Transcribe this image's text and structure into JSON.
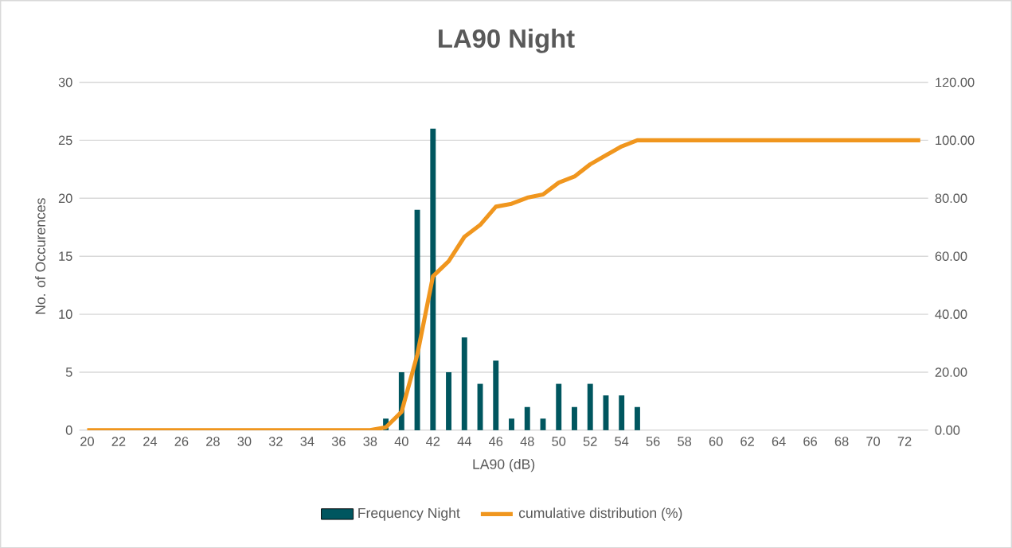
{
  "chart_data": {
    "type": "bar",
    "title": "LA90 Night",
    "xlabel": "LA90 (dB)",
    "ylabel": "No. of Occurences",
    "categories": [
      "20",
      null,
      "22",
      null,
      "24",
      null,
      "26",
      null,
      "28",
      null,
      "30",
      null,
      "32",
      null,
      "34",
      null,
      "36",
      null,
      "38",
      null,
      "40",
      null,
      "42",
      null,
      "44",
      null,
      "46",
      null,
      "48",
      null,
      "50",
      null,
      "52",
      null,
      "54",
      null,
      "56",
      null,
      "58",
      null,
      "60",
      null,
      "62",
      null,
      "64",
      null,
      "66",
      null,
      "68",
      null,
      "70",
      null,
      "72",
      null
    ],
    "series": [
      {
        "name": "Frequency Night",
        "color": "#00565f",
        "values": [
          0,
          0,
          0,
          0,
          0,
          0,
          0,
          0,
          0,
          0,
          0,
          0,
          0,
          0,
          0,
          0,
          0,
          0,
          0,
          1,
          5,
          19,
          26,
          5,
          8,
          4,
          6,
          1,
          2,
          1,
          4,
          2,
          4,
          3,
          3,
          2,
          0,
          0,
          0,
          0,
          0,
          0,
          0,
          0,
          0,
          0,
          0,
          0,
          0,
          0,
          0,
          0,
          0,
          0
        ]
      },
      {
        "name": "cumulative distribution (%)",
        "type": "line",
        "axis": "y2",
        "color": "#f0961e",
        "values": [
          0,
          0,
          0,
          0,
          0,
          0,
          0,
          0,
          0,
          0,
          0,
          0,
          0,
          0,
          0,
          0,
          0,
          0,
          0,
          1.0,
          6.3,
          26.0,
          53.1,
          58.3,
          66.7,
          70.8,
          77.1,
          78.1,
          80.2,
          81.3,
          85.4,
          87.5,
          91.7,
          94.8,
          97.9,
          100,
          100,
          100,
          100,
          100,
          100,
          100,
          100,
          100,
          100,
          100,
          100,
          100,
          100,
          100,
          100,
          100,
          100,
          100
        ]
      }
    ],
    "ylim": [
      0,
      30
    ],
    "yticks": [
      0,
      5,
      10,
      15,
      20,
      25,
      30
    ],
    "y2lim": [
      0,
      120
    ],
    "y2ticks": [
      {
        "value": 0,
        "label": "0.00"
      },
      {
        "value": 20,
        "label": "20.00"
      },
      {
        "value": 40,
        "label": "40.00"
      },
      {
        "value": 60,
        "label": "60.00"
      },
      {
        "value": 80,
        "label": "80.00"
      },
      {
        "value": 100,
        "label": "100.00"
      },
      {
        "value": 120,
        "label": "120.00"
      }
    ],
    "grid": "y",
    "legend": "bottom",
    "marker": "none",
    "line_style": "solid"
  }
}
